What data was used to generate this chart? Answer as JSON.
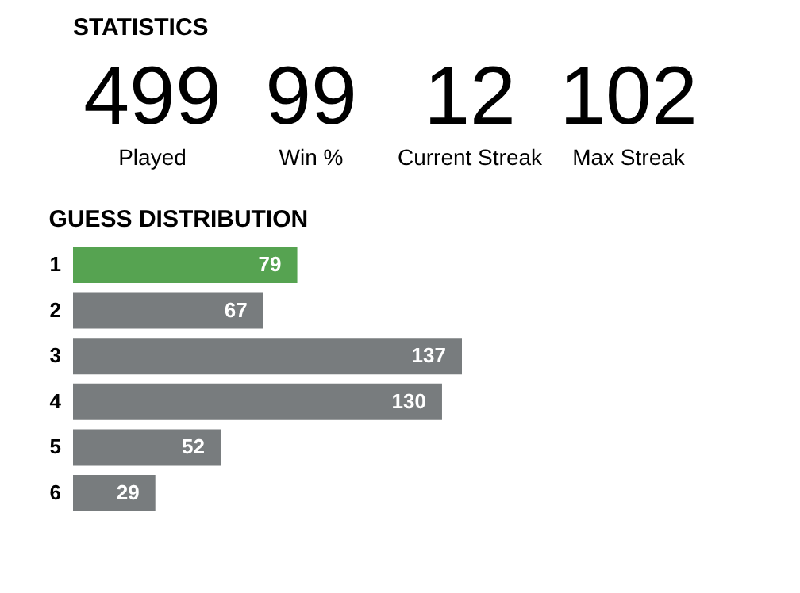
{
  "chart_data": [
    {
      "type": "other",
      "title": "STATISTICS",
      "categories": [
        "Played",
        "Win %",
        "Current Streak",
        "Max Streak"
      ],
      "values": [
        499,
        99,
        12,
        102
      ],
      "data_labels": true
    },
    {
      "type": "bar",
      "orientation": "horizontal",
      "title": "GUESS DISTRIBUTION",
      "categories": [
        "1",
        "2",
        "3",
        "4",
        "5",
        "6"
      ],
      "values": [
        79,
        67,
        137,
        130,
        52,
        29
      ],
      "colors": [
        "#56a351",
        "#787c7e",
        "#787c7e",
        "#787c7e",
        "#787c7e",
        "#787c7e"
      ],
      "data_labels": true,
      "tick_labels": "y",
      "grid": false
    }
  ]
}
